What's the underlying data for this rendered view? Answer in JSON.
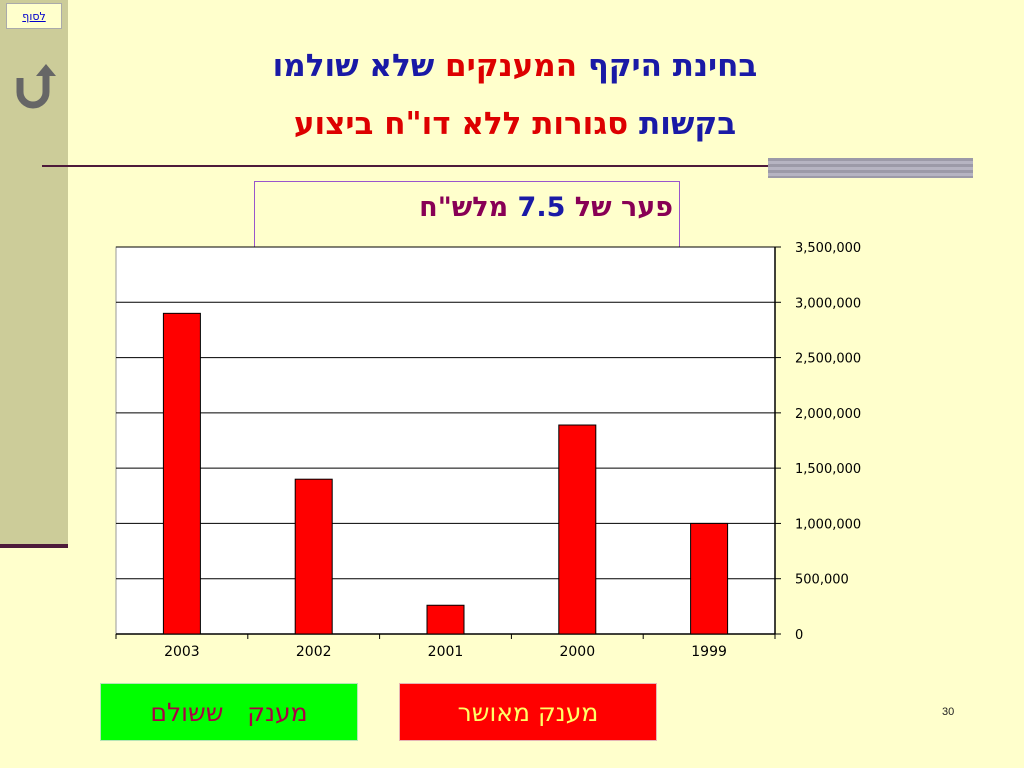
{
  "nav": {
    "end_link": "לסוף",
    "back_icon": "return-arrow-icon"
  },
  "title": {
    "line1_part1": "בחינת היקף",
    "line1_part2": "המענקים",
    "line1_part3": "שלא שולמו",
    "line2_part1": "בקשות",
    "line2_part2": "סגורות ללא דו\"ח ביצוע"
  },
  "gap_note": {
    "prefix": "פער של",
    "amount": "7.5",
    "suffix": "מלש\"ח"
  },
  "legend": {
    "paid": "מענק   ששולם",
    "approved": "מענק מאושר"
  },
  "page_number": "30",
  "colors": {
    "bar": "#ff0000",
    "paid": "#00ff00",
    "title_blue": "#1a1aa6",
    "title_red": "#dd0000"
  },
  "chart_data": {
    "type": "bar",
    "categories": [
      "2003",
      "2002",
      "2001",
      "2000",
      "1999"
    ],
    "values": [
      2900000,
      1400000,
      260000,
      1890000,
      1000000
    ],
    "ylim": [
      0,
      3500000
    ],
    "yticks": [
      "0",
      "500,000",
      "1,000,000",
      "1,500,000",
      "2,000,000",
      "2,500,000",
      "3,000,000",
      "3,500,000"
    ],
    "grid": true,
    "y_axis_side": "right"
  }
}
